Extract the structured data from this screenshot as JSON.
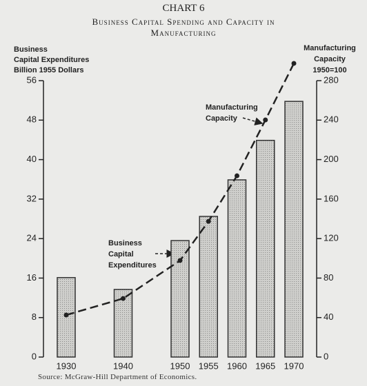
{
  "chart_data": {
    "type": "bar",
    "label": "CHART 6",
    "title": "Business Capital Spending and Capacity in Manufacturing",
    "ylabel": [
      "Business",
      "Capital Expenditures",
      "Billion 1955 Dollars"
    ],
    "y2label": [
      "Manufacturing",
      "Capacity",
      "1950=100"
    ],
    "x": [
      1930,
      1940,
      1950,
      1955,
      1960,
      1965,
      1970
    ],
    "xlim": [
      1926,
      1974
    ],
    "series": [
      {
        "type": "bar",
        "color": "#c9c9c6",
        "values": [
          16.1,
          13.7,
          23.6,
          28.5,
          35.9,
          43.9,
          51.8
        ]
      },
      {
        "type": "line",
        "axis": "y2",
        "color": "#222222",
        "values": [
          42.6,
          59.3,
          97.8,
          137.5,
          183.6,
          240.2,
          297.5
        ]
      }
    ],
    "ylim": [
      0,
      56
    ],
    "yticks": [
      0,
      8,
      16,
      24,
      32,
      40,
      48,
      56
    ],
    "y2lim": [
      0,
      280
    ],
    "y2ticks": [
      0,
      40,
      80,
      120,
      160,
      200,
      240,
      280
    ],
    "annotations": [
      {
        "text": [
          "Manufacturing",
          "Capacity"
        ]
      },
      {
        "text": [
          "Business",
          "Capital",
          "Expenditures"
        ]
      }
    ],
    "source": "Source: McGraw-Hill Department of Economics."
  }
}
